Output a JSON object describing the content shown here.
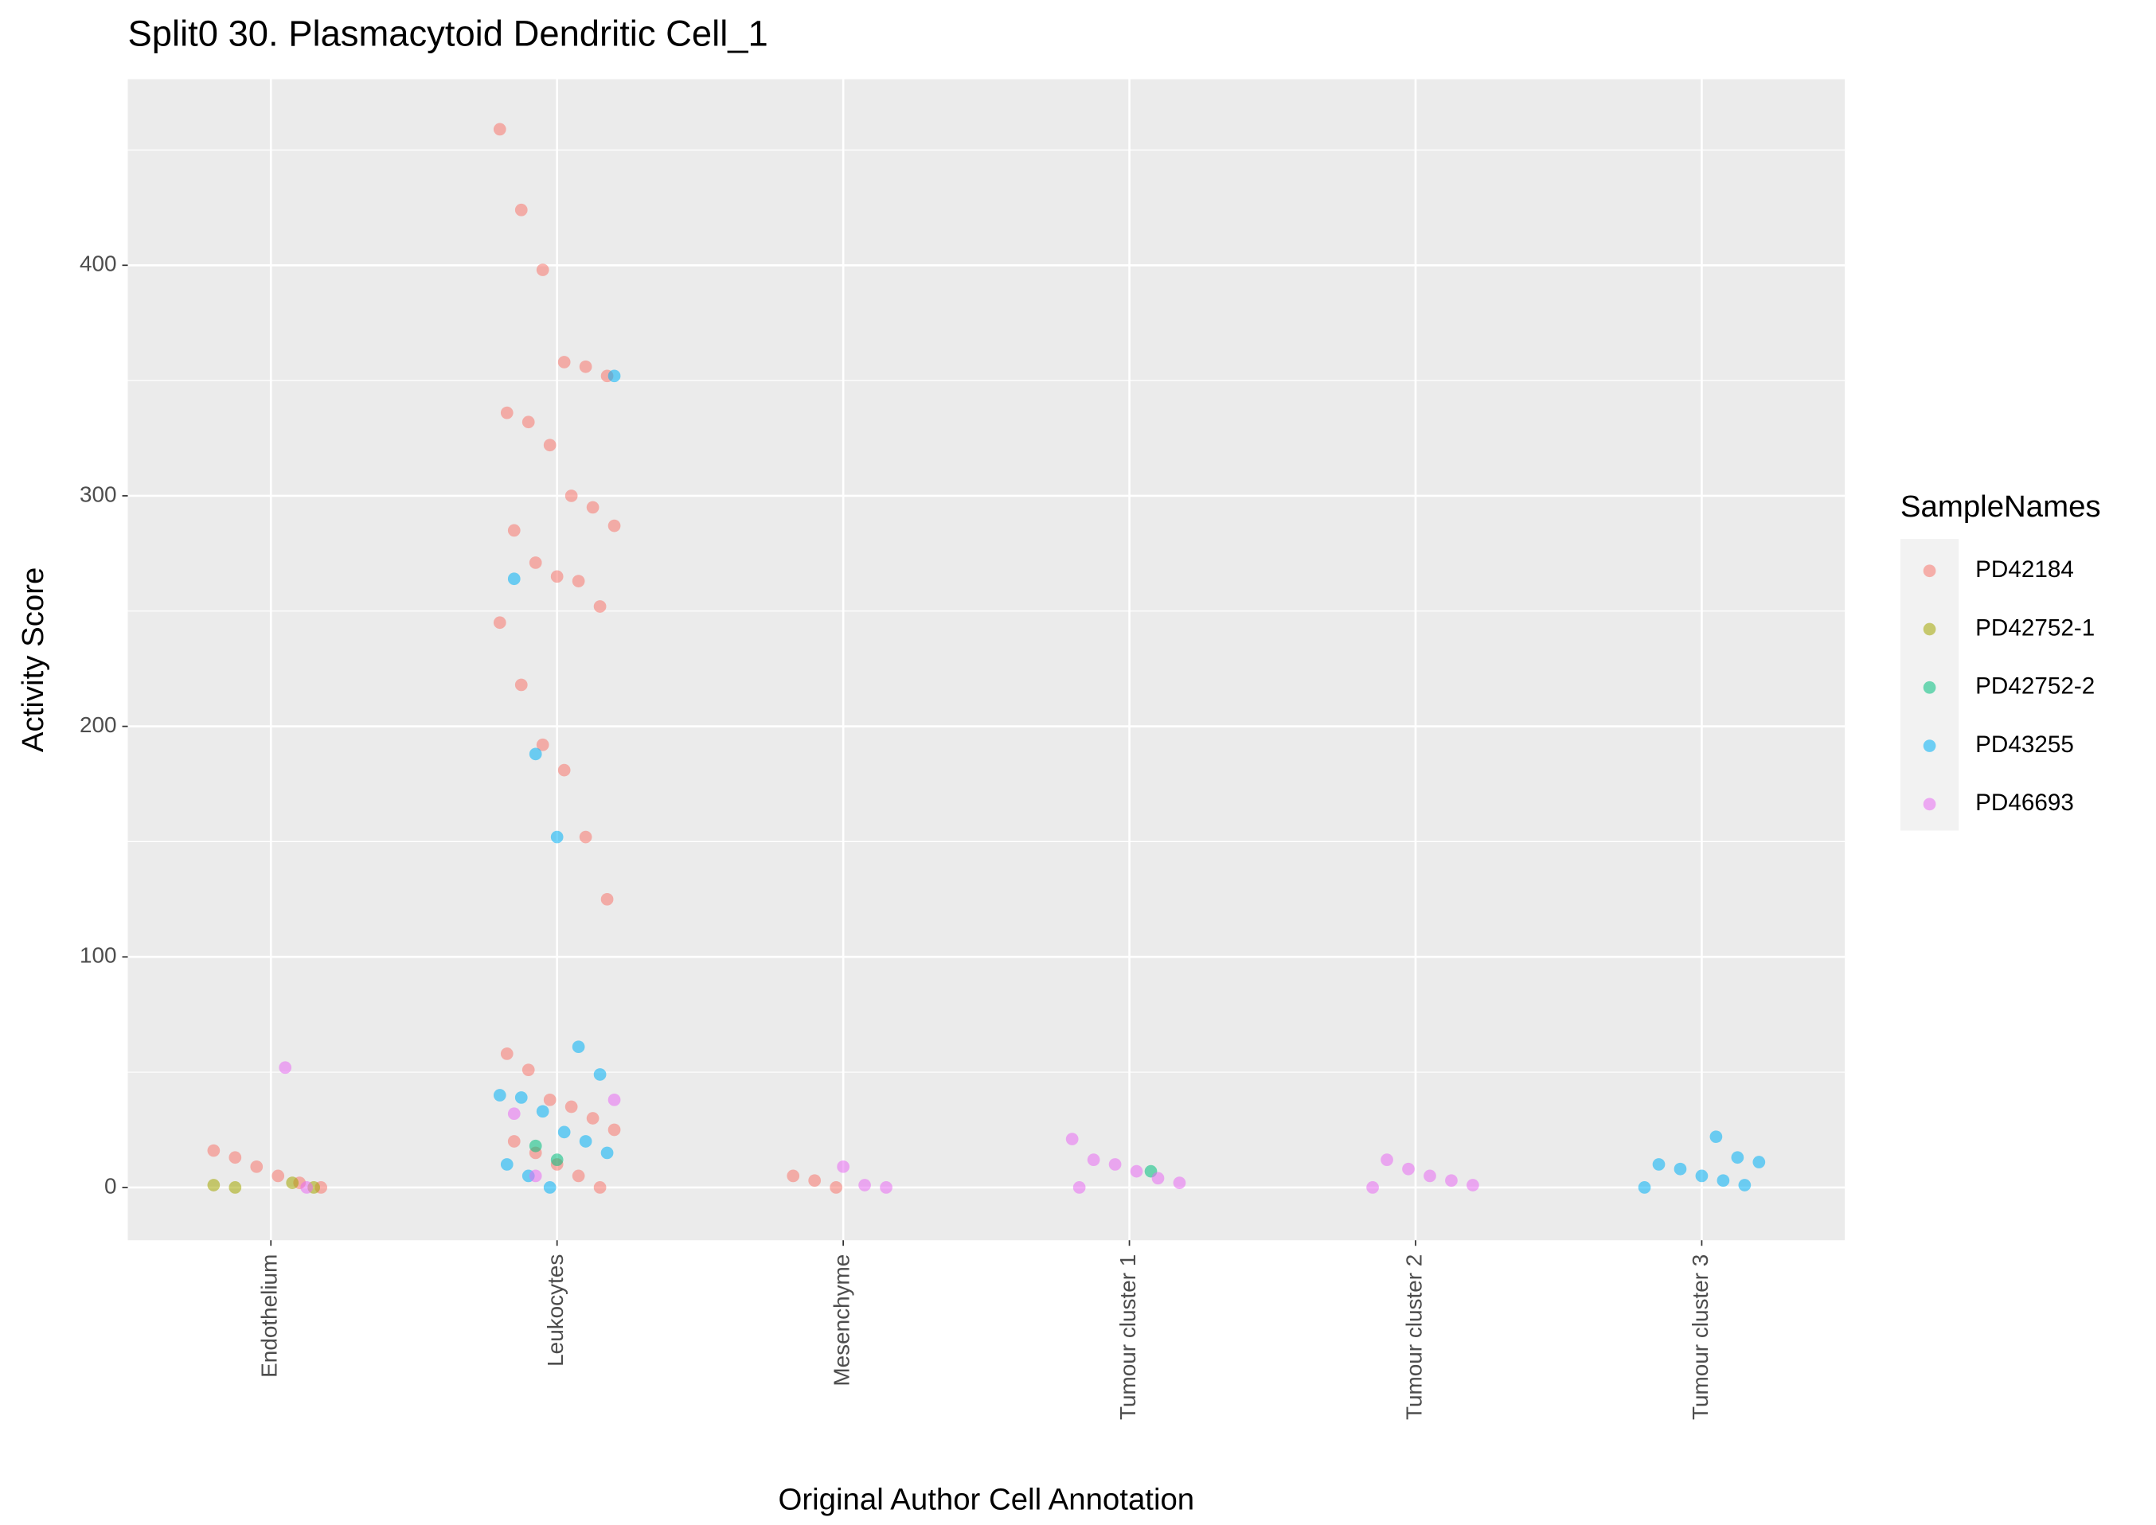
{
  "chart_data": {
    "type": "strip",
    "title": "Split0 30. Plasmacytoid Dendritic Cell_1",
    "x_label": "Original Author Cell Annotation",
    "y_label": "Activity Score",
    "legend_title": "SampleNames",
    "legend_position": "right",
    "grid": true,
    "categories": [
      "Endothelium",
      "Leukocytes",
      "Mesenchyme",
      "Tumour cluster 1",
      "Tumour cluster 2",
      "Tumour cluster 3"
    ],
    "ylim": [
      -22.9,
      480.7
    ],
    "yticks": [
      0,
      100,
      200,
      300,
      400
    ],
    "series": [
      {
        "name": "PD42184",
        "color": "#F8766D",
        "x": [
          "Leukocytes",
          "Leukocytes",
          "Leukocytes",
          "Leukocytes",
          "Leukocytes",
          "Leukocytes",
          "Leukocytes",
          "Leukocytes",
          "Leukocytes",
          "Leukocytes",
          "Leukocytes",
          "Leukocytes",
          "Leukocytes",
          "Leukocytes",
          "Leukocytes",
          "Leukocytes",
          "Leukocytes",
          "Leukocytes",
          "Leukocytes",
          "Leukocytes",
          "Leukocytes",
          "Leukocytes",
          "Leukocytes",
          "Leukocytes",
          "Leukocytes",
          "Leukocytes",
          "Leukocytes",
          "Leukocytes",
          "Leukocytes",
          "Leukocytes",
          "Leukocytes",
          "Leukocytes",
          "Leukocytes",
          "Leukocytes",
          "Endothelium",
          "Endothelium",
          "Endothelium",
          "Endothelium",
          "Endothelium",
          "Endothelium",
          "Mesenchyme",
          "Mesenchyme",
          "Mesenchyme"
        ],
        "values": [
          459,
          424,
          398,
          358,
          356,
          352,
          336,
          332,
          322,
          300,
          295,
          287,
          285,
          271,
          265,
          263,
          252,
          245,
          218,
          192,
          181,
          152,
          125,
          58,
          51,
          38,
          35,
          30,
          25,
          20,
          15,
          10,
          5,
          0,
          16,
          13,
          9,
          5,
          2,
          0,
          5,
          3,
          0
        ]
      },
      {
        "name": "PD42752-1",
        "color": "#A3A500",
        "x": [
          "Endothelium",
          "Endothelium",
          "Endothelium",
          "Endothelium"
        ],
        "values": [
          2,
          0,
          1,
          0
        ]
      },
      {
        "name": "PD42752-2",
        "color": "#00BF7D",
        "x": [
          "Leukocytes",
          "Leukocytes",
          "Tumour cluster 1"
        ],
        "values": [
          18,
          12,
          7
        ]
      },
      {
        "name": "PD43255",
        "color": "#00B0F6",
        "x": [
          "Leukocytes",
          "Leukocytes",
          "Leukocytes",
          "Leukocytes",
          "Leukocytes",
          "Leukocytes",
          "Leukocytes",
          "Leukocytes",
          "Leukocytes",
          "Leukocytes",
          "Leukocytes",
          "Leukocytes",
          "Leukocytes",
          "Leukocytes",
          "Leukocytes",
          "Tumour cluster 3",
          "Tumour cluster 3",
          "Tumour cluster 3",
          "Tumour cluster 3",
          "Tumour cluster 3",
          "Tumour cluster 3",
          "Tumour cluster 3",
          "Tumour cluster 3",
          "Tumour cluster 3"
        ],
        "values": [
          352,
          264,
          188,
          152,
          61,
          49,
          40,
          39,
          33,
          24,
          20,
          15,
          10,
          5,
          0,
          22,
          13,
          11,
          10,
          8,
          5,
          3,
          1,
          0
        ]
      },
      {
        "name": "PD46693",
        "color": "#E76BF3",
        "x": [
          "Endothelium",
          "Endothelium",
          "Leukocytes",
          "Leukocytes",
          "Leukocytes",
          "Mesenchyme",
          "Mesenchyme",
          "Mesenchyme",
          "Tumour cluster 1",
          "Tumour cluster 1",
          "Tumour cluster 1",
          "Tumour cluster 1",
          "Tumour cluster 1",
          "Tumour cluster 1",
          "Tumour cluster 1",
          "Tumour cluster 2",
          "Tumour cluster 2",
          "Tumour cluster 2",
          "Tumour cluster 2",
          "Tumour cluster 2",
          "Tumour cluster 2"
        ],
        "values": [
          52,
          0,
          38,
          32,
          5,
          9,
          1,
          0,
          21,
          12,
          10,
          7,
          4,
          2,
          0,
          12,
          8,
          5,
          3,
          1,
          0
        ]
      }
    ]
  }
}
